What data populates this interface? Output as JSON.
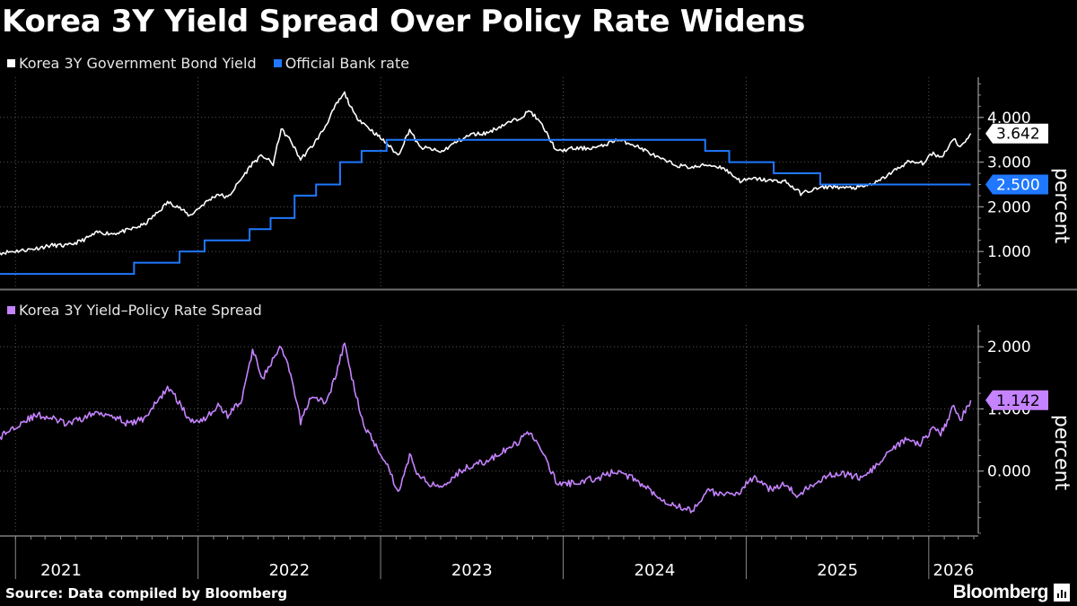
{
  "title": "Korea 3Y Yield Spread Over Policy Rate Widens",
  "source": "Source: Data compiled by Bloomberg",
  "brand": "Bloomberg",
  "colors": {
    "yield": "#ffffff",
    "policy": "#1f78ff",
    "spread": "#c583ff",
    "grid": "#555555",
    "background": "#000000"
  },
  "chart_data": [
    {
      "type": "line",
      "title": "Korea 3Y Yield Spread Over Policy Rate Widens",
      "ylabel": "percent",
      "ylim": [
        0.2,
        4.9
      ],
      "yticks": [
        "1.000",
        "2.000",
        "3.000",
        "4.000"
      ],
      "xlim": [
        "2020-12-01",
        "2026-04-10"
      ],
      "x_tick_labels": [
        "2021",
        "2022",
        "2023",
        "2024",
        "2025",
        "2026"
      ],
      "legend": "top-left",
      "last_value_labels": [
        "3.642",
        "2.500"
      ],
      "series": [
        {
          "name": "Korea 3Y Government Bond Yield",
          "points": [
            [
              "2020-12-01",
              0.97
            ],
            [
              "2021-02-01",
              1.05
            ],
            [
              "2021-03-15",
              1.14
            ],
            [
              "2021-04-15",
              1.13
            ],
            [
              "2021-05-15",
              1.25
            ],
            [
              "2021-06-15",
              1.43
            ],
            [
              "2021-07-15",
              1.4
            ],
            [
              "2021-08-15",
              1.48
            ],
            [
              "2021-09-15",
              1.6
            ],
            [
              "2021-10-15",
              1.9
            ],
            [
              "2021-11-01",
              2.1
            ],
            [
              "2021-11-20",
              2.02
            ],
            [
              "2021-12-15",
              1.8
            ],
            [
              "2022-01-15",
              2.09
            ],
            [
              "2022-02-10",
              2.29
            ],
            [
              "2022-03-01",
              2.2
            ],
            [
              "2022-03-30",
              2.65
            ],
            [
              "2022-04-20",
              2.98
            ],
            [
              "2022-05-10",
              3.15
            ],
            [
              "2022-05-31",
              2.95
            ],
            [
              "2022-06-16",
              3.74
            ],
            [
              "2022-07-05",
              3.48
            ],
            [
              "2022-07-25",
              3.06
            ],
            [
              "2022-08-20",
              3.4
            ],
            [
              "2022-09-10",
              3.75
            ],
            [
              "2022-10-05",
              4.3
            ],
            [
              "2022-10-21",
              4.54
            ],
            [
              "2022-11-10",
              4.05
            ],
            [
              "2022-11-30",
              3.85
            ],
            [
              "2022-12-15",
              3.7
            ],
            [
              "2023-01-15",
              3.4
            ],
            [
              "2023-02-05",
              3.15
            ],
            [
              "2023-02-28",
              3.73
            ],
            [
              "2023-03-20",
              3.33
            ],
            [
              "2023-04-10",
              3.3
            ],
            [
              "2023-05-01",
              3.22
            ],
            [
              "2023-06-01",
              3.45
            ],
            [
              "2023-07-01",
              3.62
            ],
            [
              "2023-08-01",
              3.65
            ],
            [
              "2023-09-01",
              3.82
            ],
            [
              "2023-10-01",
              3.96
            ],
            [
              "2023-10-27",
              4.15
            ],
            [
              "2023-11-20",
              3.82
            ],
            [
              "2023-12-20",
              3.23
            ],
            [
              "2024-01-15",
              3.3
            ],
            [
              "2024-02-15",
              3.31
            ],
            [
              "2024-03-15",
              3.34
            ],
            [
              "2024-04-15",
              3.5
            ],
            [
              "2024-05-15",
              3.42
            ],
            [
              "2024-06-15",
              3.25
            ],
            [
              "2024-07-15",
              3.06
            ],
            [
              "2024-08-15",
              2.93
            ],
            [
              "2024-09-15",
              2.88
            ],
            [
              "2024-10-15",
              2.94
            ],
            [
              "2024-11-15",
              2.88
            ],
            [
              "2024-12-20",
              2.58
            ],
            [
              "2025-01-20",
              2.63
            ],
            [
              "2025-02-20",
              2.58
            ],
            [
              "2025-03-20",
              2.57
            ],
            [
              "2025-04-20",
              2.3
            ],
            [
              "2025-05-20",
              2.4
            ],
            [
              "2025-06-20",
              2.46
            ],
            [
              "2025-07-20",
              2.42
            ],
            [
              "2025-08-20",
              2.44
            ],
            [
              "2025-09-20",
              2.55
            ],
            [
              "2025-10-20",
              2.78
            ],
            [
              "2025-11-20",
              3.0
            ],
            [
              "2025-12-20",
              2.98
            ],
            [
              "2026-01-10",
              3.2
            ],
            [
              "2026-01-25",
              3.1
            ],
            [
              "2026-02-10",
              3.35
            ],
            [
              "2026-02-20",
              3.55
            ],
            [
              "2026-03-05",
              3.32
            ],
            [
              "2026-03-15",
              3.48
            ],
            [
              "2026-03-26",
              3.64
            ]
          ]
        },
        {
          "name": "Official Bank rate",
          "step": true,
          "points": [
            [
              "2020-12-01",
              0.5
            ],
            [
              "2021-08-26",
              0.75
            ],
            [
              "2021-11-25",
              1.0
            ],
            [
              "2022-01-14",
              1.25
            ],
            [
              "2022-04-14",
              1.5
            ],
            [
              "2022-05-26",
              1.75
            ],
            [
              "2022-07-13",
              2.25
            ],
            [
              "2022-08-25",
              2.5
            ],
            [
              "2022-10-12",
              3.0
            ],
            [
              "2022-11-24",
              3.25
            ],
            [
              "2023-01-13",
              3.5
            ],
            [
              "2024-10-11",
              3.25
            ],
            [
              "2024-11-28",
              3.0
            ],
            [
              "2025-02-25",
              2.75
            ],
            [
              "2025-05-29",
              2.5
            ],
            [
              "2026-03-26",
              2.5
            ]
          ]
        }
      ]
    },
    {
      "type": "line",
      "ylabel": "percent",
      "ylim": [
        -1.0,
        2.35
      ],
      "yticks": [
        "0.000",
        "1.000",
        "2.000"
      ],
      "xlim": [
        "2020-12-01",
        "2026-04-10"
      ],
      "x_tick_labels": [
        "2021",
        "2022",
        "2023",
        "2024",
        "2025",
        "2026"
      ],
      "legend": "top-left",
      "last_value_labels": [
        "1.142"
      ],
      "series": [
        {
          "name": "Korea 3Y Yield–Policy Rate Spread",
          "points": [
            [
              "2020-12-01",
              0.55
            ],
            [
              "2021-01-15",
              0.8
            ],
            [
              "2021-02-15",
              0.9
            ],
            [
              "2021-03-15",
              0.85
            ],
            [
              "2021-04-15",
              0.75
            ],
            [
              "2021-05-15",
              0.85
            ],
            [
              "2021-06-15",
              0.95
            ],
            [
              "2021-07-15",
              0.9
            ],
            [
              "2021-08-15",
              0.75
            ],
            [
              "2021-09-15",
              0.85
            ],
            [
              "2021-10-15",
              1.15
            ],
            [
              "2021-11-01",
              1.35
            ],
            [
              "2021-11-25",
              1.1
            ],
            [
              "2021-12-15",
              0.8
            ],
            [
              "2022-01-15",
              0.85
            ],
            [
              "2022-02-10",
              1.05
            ],
            [
              "2022-03-01",
              0.9
            ],
            [
              "2022-03-30",
              1.15
            ],
            [
              "2022-04-20",
              1.95
            ],
            [
              "2022-05-10",
              1.5
            ],
            [
              "2022-06-16",
              2.0
            ],
            [
              "2022-07-05",
              1.55
            ],
            [
              "2022-07-25",
              0.8
            ],
            [
              "2022-08-15",
              1.2
            ],
            [
              "2022-09-15",
              1.1
            ],
            [
              "2022-10-05",
              1.6
            ],
            [
              "2022-10-21",
              2.05
            ],
            [
              "2022-11-10",
              1.3
            ],
            [
              "2022-12-01",
              0.7
            ],
            [
              "2022-12-20",
              0.45
            ],
            [
              "2023-01-15",
              0.1
            ],
            [
              "2023-02-05",
              -0.35
            ],
            [
              "2023-02-28",
              0.25
            ],
            [
              "2023-03-20",
              -0.1
            ],
            [
              "2023-04-10",
              -0.2
            ],
            [
              "2023-05-01",
              -0.25
            ],
            [
              "2023-06-01",
              -0.05
            ],
            [
              "2023-07-01",
              0.1
            ],
            [
              "2023-08-01",
              0.15
            ],
            [
              "2023-09-01",
              0.3
            ],
            [
              "2023-10-01",
              0.45
            ],
            [
              "2023-10-27",
              0.65
            ],
            [
              "2023-11-20",
              0.3
            ],
            [
              "2023-12-20",
              -0.2
            ],
            [
              "2024-01-15",
              -0.2
            ],
            [
              "2024-02-15",
              -0.15
            ],
            [
              "2024-03-15",
              -0.1
            ],
            [
              "2024-04-15",
              0.0
            ],
            [
              "2024-05-15",
              -0.1
            ],
            [
              "2024-06-15",
              -0.25
            ],
            [
              "2024-07-15",
              -0.45
            ],
            [
              "2024-08-15",
              -0.55
            ],
            [
              "2024-09-15",
              -0.65
            ],
            [
              "2024-10-15",
              -0.3
            ],
            [
              "2024-11-15",
              -0.4
            ],
            [
              "2024-12-15",
              -0.35
            ],
            [
              "2025-01-15",
              -0.1
            ],
            [
              "2025-02-15",
              -0.3
            ],
            [
              "2025-03-15",
              -0.2
            ],
            [
              "2025-04-15",
              -0.4
            ],
            [
              "2025-05-15",
              -0.2
            ],
            [
              "2025-06-15",
              -0.05
            ],
            [
              "2025-07-15",
              -0.05
            ],
            [
              "2025-08-15",
              -0.1
            ],
            [
              "2025-09-15",
              0.05
            ],
            [
              "2025-10-15",
              0.3
            ],
            [
              "2025-11-15",
              0.5
            ],
            [
              "2025-12-15",
              0.45
            ],
            [
              "2026-01-10",
              0.7
            ],
            [
              "2026-01-25",
              0.6
            ],
            [
              "2026-02-10",
              0.85
            ],
            [
              "2026-02-20",
              1.05
            ],
            [
              "2026-03-05",
              0.82
            ],
            [
              "2026-03-15",
              0.98
            ],
            [
              "2026-03-26",
              1.14
            ]
          ]
        }
      ]
    }
  ]
}
